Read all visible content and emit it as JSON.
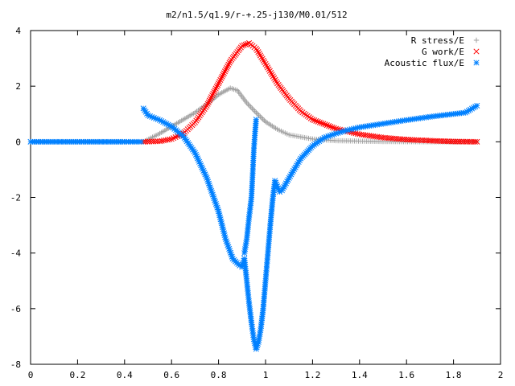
{
  "chart_data": {
    "type": "scatter",
    "title": "m2/n1.5/q1.9/r-+.25-j130/M0.01/512",
    "xlabel": "",
    "ylabel": "",
    "xlim": [
      0,
      2
    ],
    "ylim": [
      -8,
      4
    ],
    "x_ticks": [
      "0",
      "0.2",
      "0.4",
      "0.6",
      "0.8",
      "1",
      "1.2",
      "1.4",
      "1.6",
      "1.8",
      "2"
    ],
    "y_ticks": [
      "4",
      "2",
      "0",
      "-2",
      "-4",
      "-6",
      "-8"
    ],
    "grid": false,
    "legend_position": "top-right",
    "series": [
      {
        "name": "R stress/E",
        "marker": "plus",
        "color": "#a0a0a0",
        "points": [
          [
            0.48,
            0
          ],
          [
            0.55,
            0.3
          ],
          [
            0.6,
            0.55
          ],
          [
            0.65,
            0.8
          ],
          [
            0.7,
            1.05
          ],
          [
            0.75,
            1.35
          ],
          [
            0.8,
            1.7
          ],
          [
            0.85,
            1.93
          ],
          [
            0.88,
            1.85
          ],
          [
            0.92,
            1.4
          ],
          [
            0.96,
            1.05
          ],
          [
            1.0,
            0.72
          ],
          [
            1.05,
            0.45
          ],
          [
            1.1,
            0.25
          ],
          [
            1.2,
            0.1
          ],
          [
            1.3,
            0.04
          ],
          [
            1.5,
            0.01
          ],
          [
            1.7,
            0.0
          ],
          [
            1.9,
            0.0
          ]
        ]
      },
      {
        "name": "G work/E",
        "marker": "cross",
        "color": "#ff0000",
        "points": [
          [
            0.48,
            0
          ],
          [
            0.55,
            0.02
          ],
          [
            0.6,
            0.1
          ],
          [
            0.65,
            0.3
          ],
          [
            0.7,
            0.7
          ],
          [
            0.75,
            1.3
          ],
          [
            0.8,
            2.1
          ],
          [
            0.85,
            2.9
          ],
          [
            0.9,
            3.45
          ],
          [
            0.93,
            3.55
          ],
          [
            0.96,
            3.35
          ],
          [
            1.0,
            2.8
          ],
          [
            1.05,
            2.1
          ],
          [
            1.1,
            1.55
          ],
          [
            1.15,
            1.1
          ],
          [
            1.2,
            0.8
          ],
          [
            1.3,
            0.47
          ],
          [
            1.4,
            0.27
          ],
          [
            1.5,
            0.15
          ],
          [
            1.6,
            0.08
          ],
          [
            1.7,
            0.04
          ],
          [
            1.8,
            0.01
          ],
          [
            1.9,
            0.0
          ]
        ]
      },
      {
        "name": "Acoustic flux/E",
        "marker": "star",
        "color": "#0080ff",
        "points": [
          [
            0.48,
            1.2
          ],
          [
            0.5,
            0.95
          ],
          [
            0.55,
            0.78
          ],
          [
            0.6,
            0.55
          ],
          [
            0.65,
            0.2
          ],
          [
            0.7,
            -0.4
          ],
          [
            0.75,
            -1.3
          ],
          [
            0.8,
            -2.5
          ],
          [
            0.83,
            -3.5
          ],
          [
            0.86,
            -4.2
          ],
          [
            0.89,
            -4.45
          ],
          [
            0.9,
            -4.5
          ],
          [
            0.91,
            -4.2
          ],
          [
            0.92,
            -5.0
          ],
          [
            0.93,
            -5.8
          ],
          [
            0.94,
            -6.5
          ],
          [
            0.95,
            -7.1
          ],
          [
            0.96,
            -7.45
          ],
          [
            0.97,
            -7.2
          ],
          [
            0.98,
            -6.7
          ],
          [
            0.99,
            -6.0
          ],
          [
            1.0,
            -5.0
          ],
          [
            1.01,
            -4.0
          ],
          [
            1.02,
            -3.0
          ],
          [
            1.03,
            -2.1
          ],
          [
            1.04,
            -1.4
          ],
          [
            1.05,
            -1.6
          ],
          [
            1.06,
            -1.8
          ],
          [
            1.07,
            -1.75
          ],
          [
            1.1,
            -1.3
          ],
          [
            1.15,
            -0.6
          ],
          [
            1.2,
            -0.15
          ],
          [
            1.25,
            0.15
          ],
          [
            1.3,
            0.3
          ],
          [
            1.35,
            0.42
          ],
          [
            1.4,
            0.52
          ],
          [
            1.5,
            0.65
          ],
          [
            1.6,
            0.78
          ],
          [
            1.7,
            0.9
          ],
          [
            1.8,
            1.0
          ],
          [
            1.85,
            1.05
          ],
          [
            1.9,
            1.3
          ]
        ]
      },
      {
        "name": "",
        "marker": "star",
        "color": "#0080ff",
        "points": [
          [
            0.96,
            0.8
          ],
          [
            0.955,
            0.3
          ],
          [
            0.95,
            -0.3
          ],
          [
            0.945,
            -1.2
          ],
          [
            0.94,
            -2.0
          ],
          [
            0.93,
            -2.7
          ],
          [
            0.92,
            -3.5
          ],
          [
            0.91,
            -4.0
          ]
        ]
      },
      {
        "name": "",
        "marker": "star",
        "color": "#0080ff",
        "points": [
          [
            0.0,
            0.0
          ],
          [
            0.1,
            0.0
          ],
          [
            0.2,
            0.0
          ],
          [
            0.3,
            0.0
          ],
          [
            0.4,
            0.0
          ],
          [
            0.47,
            0.0
          ]
        ]
      }
    ]
  }
}
